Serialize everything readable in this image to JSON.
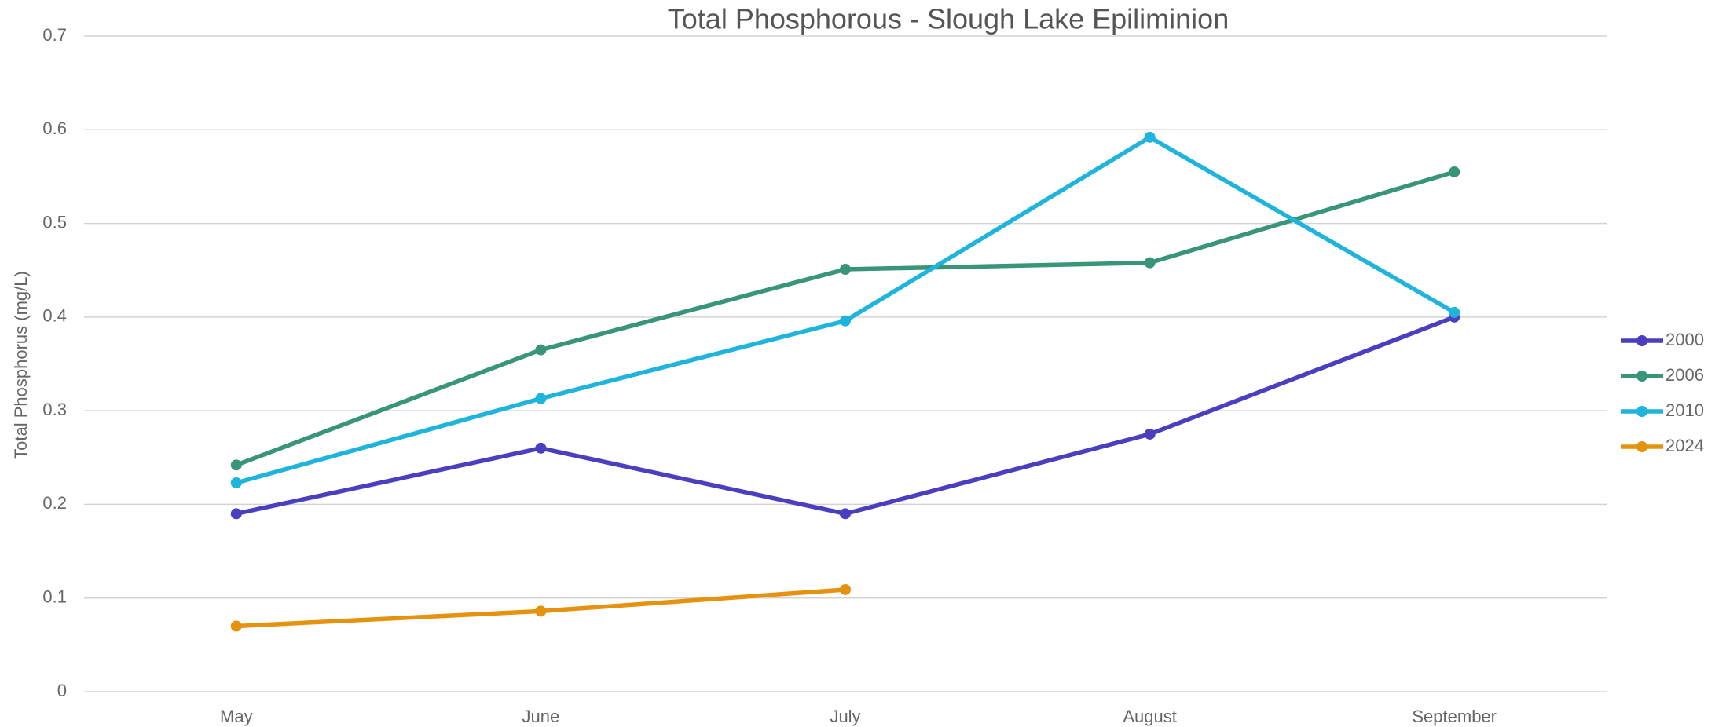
{
  "chart_data": {
    "type": "line",
    "title": "Total Phosphorous - Slough Lake Epiliminion",
    "y_label": "Total Phosphorus (mg/L)",
    "categories": [
      "May",
      "June",
      "July",
      "August",
      "September"
    ],
    "series": [
      {
        "name": "2000",
        "color": "#4b3fbf",
        "values": [
          0.19,
          0.26,
          0.19,
          0.275,
          0.4
        ]
      },
      {
        "name": "2006",
        "color": "#38957a",
        "values": [
          0.242,
          0.365,
          0.451,
          0.458,
          0.555
        ]
      },
      {
        "name": "2010",
        "color": "#1fb4dc",
        "values": [
          0.223,
          0.313,
          0.396,
          0.592,
          0.405
        ]
      },
      {
        "name": "2024",
        "color": "#e5930f",
        "values": [
          0.07,
          0.086,
          0.109,
          null,
          null
        ]
      }
    ],
    "ylim": [
      0,
      0.7
    ],
    "yticks": [
      0,
      0.1,
      0.2,
      0.3,
      0.4,
      0.5,
      0.6,
      0.7
    ],
    "grid": true,
    "legend": "right"
  }
}
